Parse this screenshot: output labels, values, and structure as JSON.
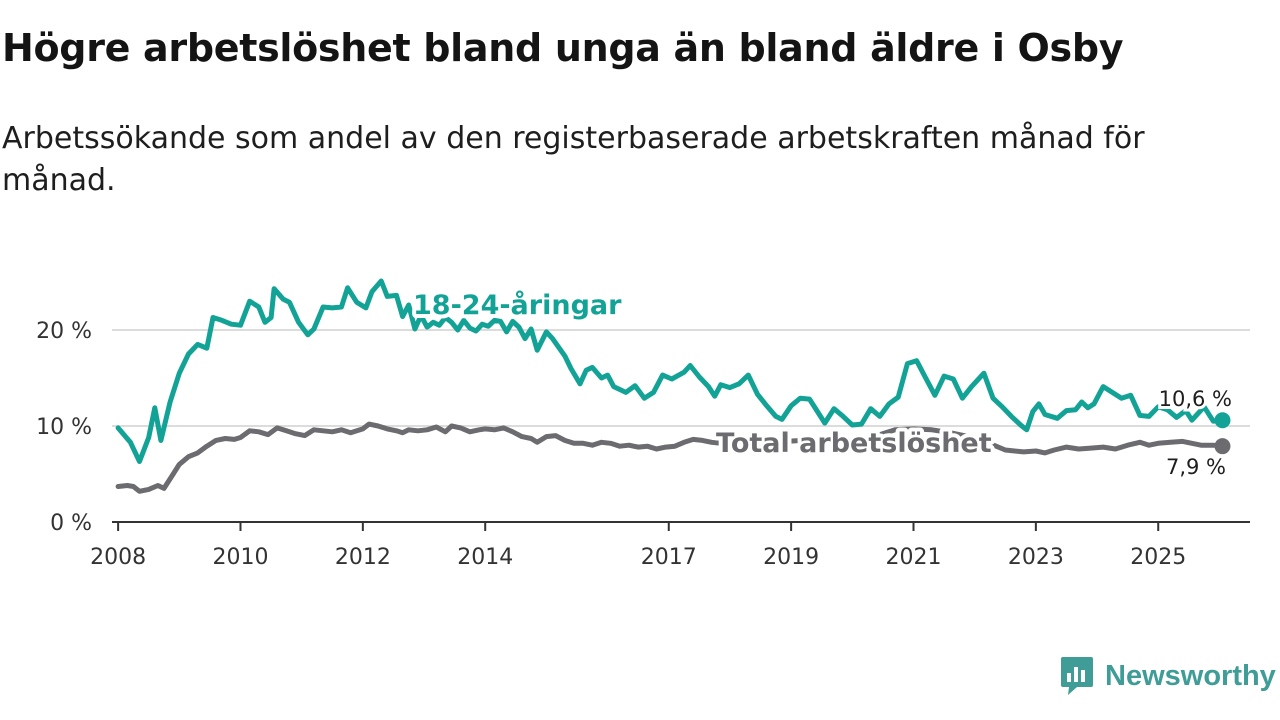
{
  "title": "Högre arbetslöshet bland unga än bland äldre i Osby",
  "subtitle": "Arbetssökande som andel av den registerbaserade arbetskraften månad för månad.",
  "brand": {
    "name": "Newsworthy",
    "icon": "newsworthy-logo-icon"
  },
  "colors": {
    "youth": "#13a396",
    "total": "#6b6b70",
    "grid": "#dcdcdc",
    "axis": "#333333",
    "brand": "#3f9c96"
  },
  "chart_data": {
    "type": "line",
    "x_unit": "year (decimal)",
    "y_unit": "%",
    "ylim": [
      0,
      25
    ],
    "xlim": [
      2007.9,
      2026.5
    ],
    "y_ticks": [
      0,
      10,
      20
    ],
    "y_tick_labels": [
      "0 %",
      "10 %",
      "20 %"
    ],
    "x_ticks": [
      2008,
      2010,
      2012,
      2014,
      2017,
      2019,
      2021,
      2023,
      2025
    ],
    "x_tick_labels": [
      "2008",
      "2010",
      "2012",
      "2014",
      "2017",
      "2019",
      "2021",
      "2023",
      "2025"
    ],
    "grid": true,
    "series": [
      {
        "name": "18-24-åringar",
        "label": "18-24-åringar",
        "color": "#13a396",
        "end_label": "10,6 %",
        "end_value": 10.6,
        "points": [
          [
            2008.0,
            9.8
          ],
          [
            2008.2,
            8.3
          ],
          [
            2008.35,
            6.3
          ],
          [
            2008.5,
            8.8
          ],
          [
            2008.6,
            11.9
          ],
          [
            2008.7,
            8.5
          ],
          [
            2008.85,
            12.5
          ],
          [
            2009.0,
            15.5
          ],
          [
            2009.15,
            17.5
          ],
          [
            2009.3,
            18.5
          ],
          [
            2009.45,
            18.1
          ],
          [
            2009.55,
            21.3
          ],
          [
            2009.7,
            21.0
          ],
          [
            2009.85,
            20.6
          ],
          [
            2010.0,
            20.5
          ],
          [
            2010.15,
            23.0
          ],
          [
            2010.3,
            22.4
          ],
          [
            2010.4,
            20.8
          ],
          [
            2010.5,
            21.3
          ],
          [
            2010.55,
            24.3
          ],
          [
            2010.7,
            23.2
          ],
          [
            2010.8,
            22.9
          ],
          [
            2010.95,
            20.8
          ],
          [
            2011.1,
            19.5
          ],
          [
            2011.2,
            20.1
          ],
          [
            2011.35,
            22.4
          ],
          [
            2011.5,
            22.3
          ],
          [
            2011.65,
            22.4
          ],
          [
            2011.75,
            24.4
          ],
          [
            2011.9,
            22.9
          ],
          [
            2012.05,
            22.3
          ],
          [
            2012.15,
            24.0
          ],
          [
            2012.3,
            25.1
          ],
          [
            2012.4,
            23.5
          ],
          [
            2012.55,
            23.6
          ],
          [
            2012.65,
            21.4
          ],
          [
            2012.75,
            22.6
          ],
          [
            2012.85,
            20.1
          ],
          [
            2012.95,
            21.5
          ],
          [
            2013.05,
            20.3
          ],
          [
            2013.15,
            20.8
          ],
          [
            2013.25,
            20.5
          ],
          [
            2013.35,
            21.3
          ],
          [
            2013.45,
            20.8
          ],
          [
            2013.55,
            20.0
          ],
          [
            2013.65,
            21.0
          ],
          [
            2013.75,
            20.2
          ],
          [
            2013.85,
            19.9
          ],
          [
            2013.95,
            20.6
          ],
          [
            2014.05,
            20.4
          ],
          [
            2014.15,
            21.0
          ],
          [
            2014.25,
            20.9
          ],
          [
            2014.35,
            19.8
          ],
          [
            2014.45,
            20.9
          ],
          [
            2014.55,
            20.3
          ],
          [
            2014.65,
            19.1
          ],
          [
            2014.75,
            20.1
          ],
          [
            2014.85,
            17.9
          ],
          [
            2015.0,
            19.8
          ],
          [
            2015.1,
            19.1
          ],
          [
            2015.3,
            17.3
          ],
          [
            2015.4,
            16.0
          ],
          [
            2015.55,
            14.4
          ],
          [
            2015.65,
            15.8
          ],
          [
            2015.75,
            16.1
          ],
          [
            2015.9,
            15.0
          ],
          [
            2016.0,
            15.3
          ],
          [
            2016.1,
            14.1
          ],
          [
            2016.3,
            13.5
          ],
          [
            2016.45,
            14.2
          ],
          [
            2016.6,
            12.9
          ],
          [
            2016.75,
            13.5
          ],
          [
            2016.9,
            15.3
          ],
          [
            2017.05,
            14.9
          ],
          [
            2017.25,
            15.6
          ],
          [
            2017.35,
            16.3
          ],
          [
            2017.5,
            15.1
          ],
          [
            2017.65,
            14.1
          ],
          [
            2017.75,
            13.1
          ],
          [
            2017.85,
            14.3
          ],
          [
            2018.0,
            14.0
          ],
          [
            2018.15,
            14.4
          ],
          [
            2018.3,
            15.3
          ],
          [
            2018.45,
            13.3
          ],
          [
            2018.6,
            12.1
          ],
          [
            2018.75,
            11.0
          ],
          [
            2018.85,
            10.7
          ],
          [
            2019.0,
            12.1
          ],
          [
            2019.15,
            12.9
          ],
          [
            2019.3,
            12.8
          ],
          [
            2019.45,
            11.3
          ],
          [
            2019.55,
            10.3
          ],
          [
            2019.7,
            11.8
          ],
          [
            2019.85,
            11.0
          ],
          [
            2020.0,
            10.1
          ],
          [
            2020.15,
            10.2
          ],
          [
            2020.3,
            11.8
          ],
          [
            2020.45,
            11.0
          ],
          [
            2020.6,
            12.3
          ],
          [
            2020.75,
            13.0
          ],
          [
            2020.9,
            16.5
          ],
          [
            2021.05,
            16.8
          ],
          [
            2021.2,
            15.0
          ],
          [
            2021.35,
            13.2
          ],
          [
            2021.5,
            15.2
          ],
          [
            2021.65,
            14.9
          ],
          [
            2021.8,
            12.9
          ],
          [
            2021.95,
            14.1
          ],
          [
            2022.15,
            15.5
          ],
          [
            2022.3,
            12.9
          ],
          [
            2022.45,
            12.0
          ],
          [
            2022.6,
            11.0
          ],
          [
            2022.75,
            10.1
          ],
          [
            2022.85,
            9.6
          ],
          [
            2022.95,
            11.5
          ],
          [
            2023.05,
            12.3
          ],
          [
            2023.15,
            11.2
          ],
          [
            2023.35,
            10.8
          ],
          [
            2023.5,
            11.6
          ],
          [
            2023.65,
            11.7
          ],
          [
            2023.75,
            12.5
          ],
          [
            2023.85,
            11.9
          ],
          [
            2023.95,
            12.3
          ],
          [
            2024.1,
            14.1
          ],
          [
            2024.25,
            13.5
          ],
          [
            2024.4,
            12.9
          ],
          [
            2024.55,
            13.2
          ],
          [
            2024.7,
            11.1
          ],
          [
            2024.85,
            11.0
          ],
          [
            2025.0,
            12.0
          ],
          [
            2025.15,
            11.7
          ],
          [
            2025.3,
            10.9
          ],
          [
            2025.45,
            11.6
          ],
          [
            2025.55,
            10.6
          ],
          [
            2025.75,
            12.0
          ],
          [
            2025.9,
            10.5
          ],
          [
            2026.05,
            10.6
          ]
        ]
      },
      {
        "name": "Total arbetslöshet",
        "label": "Total arbetslöshet",
        "color": "#6b6b70",
        "end_label": "7,9 %",
        "end_value": 7.9,
        "points": [
          [
            2008.0,
            3.7
          ],
          [
            2008.15,
            3.8
          ],
          [
            2008.25,
            3.7
          ],
          [
            2008.35,
            3.2
          ],
          [
            2008.5,
            3.4
          ],
          [
            2008.65,
            3.8
          ],
          [
            2008.75,
            3.5
          ],
          [
            2008.9,
            5.0
          ],
          [
            2009.0,
            6.0
          ],
          [
            2009.15,
            6.8
          ],
          [
            2009.3,
            7.2
          ],
          [
            2009.45,
            7.9
          ],
          [
            2009.6,
            8.5
          ],
          [
            2009.75,
            8.7
          ],
          [
            2009.9,
            8.6
          ],
          [
            2010.0,
            8.8
          ],
          [
            2010.15,
            9.5
          ],
          [
            2010.3,
            9.4
          ],
          [
            2010.45,
            9.1
          ],
          [
            2010.6,
            9.8
          ],
          [
            2010.75,
            9.5
          ],
          [
            2010.9,
            9.2
          ],
          [
            2011.05,
            9.0
          ],
          [
            2011.2,
            9.6
          ],
          [
            2011.35,
            9.5
          ],
          [
            2011.5,
            9.4
          ],
          [
            2011.65,
            9.6
          ],
          [
            2011.8,
            9.3
          ],
          [
            2012.0,
            9.7
          ],
          [
            2012.1,
            10.2
          ],
          [
            2012.25,
            10.0
          ],
          [
            2012.4,
            9.7
          ],
          [
            2012.55,
            9.5
          ],
          [
            2012.65,
            9.3
          ],
          [
            2012.75,
            9.6
          ],
          [
            2012.9,
            9.5
          ],
          [
            2013.05,
            9.6
          ],
          [
            2013.2,
            9.9
          ],
          [
            2013.35,
            9.4
          ],
          [
            2013.45,
            10.0
          ],
          [
            2013.6,
            9.8
          ],
          [
            2013.75,
            9.4
          ],
          [
            2013.9,
            9.6
          ],
          [
            2014.0,
            9.7
          ],
          [
            2014.15,
            9.6
          ],
          [
            2014.3,
            9.8
          ],
          [
            2014.45,
            9.4
          ],
          [
            2014.6,
            8.9
          ],
          [
            2014.75,
            8.7
          ],
          [
            2014.85,
            8.3
          ],
          [
            2015.0,
            8.9
          ],
          [
            2015.15,
            9.0
          ],
          [
            2015.3,
            8.5
          ],
          [
            2015.45,
            8.2
          ],
          [
            2015.6,
            8.2
          ],
          [
            2015.75,
            8.0
          ],
          [
            2015.9,
            8.3
          ],
          [
            2016.05,
            8.2
          ],
          [
            2016.2,
            7.9
          ],
          [
            2016.35,
            8.0
          ],
          [
            2016.5,
            7.8
          ],
          [
            2016.65,
            7.9
          ],
          [
            2016.8,
            7.6
          ],
          [
            2016.95,
            7.8
          ],
          [
            2017.1,
            7.9
          ],
          [
            2017.25,
            8.3
          ],
          [
            2017.4,
            8.6
          ],
          [
            2017.55,
            8.5
          ],
          [
            2017.7,
            8.3
          ],
          [
            2017.85,
            8.2
          ],
          [
            2018.0,
            8.4
          ],
          [
            2018.3,
            8.6
          ],
          [
            2018.6,
            8.5
          ],
          [
            2018.9,
            8.4
          ],
          [
            2019.2,
            8.5
          ],
          [
            2019.5,
            8.3
          ],
          [
            2019.8,
            8.4
          ],
          [
            2020.1,
            8.4
          ],
          [
            2020.4,
            9.0
          ],
          [
            2020.7,
            9.6
          ],
          [
            2021.0,
            9.7
          ],
          [
            2021.3,
            9.6
          ],
          [
            2021.6,
            9.3
          ],
          [
            2021.9,
            8.9
          ],
          [
            2022.2,
            8.3
          ],
          [
            2022.5,
            7.5
          ],
          [
            2022.8,
            7.3
          ],
          [
            2023.0,
            7.4
          ],
          [
            2023.15,
            7.2
          ],
          [
            2023.3,
            7.5
          ],
          [
            2023.5,
            7.8
          ],
          [
            2023.7,
            7.6
          ],
          [
            2023.9,
            7.7
          ],
          [
            2024.1,
            7.8
          ],
          [
            2024.3,
            7.6
          ],
          [
            2024.5,
            8.0
          ],
          [
            2024.7,
            8.3
          ],
          [
            2024.85,
            8.0
          ],
          [
            2025.0,
            8.2
          ],
          [
            2025.2,
            8.3
          ],
          [
            2025.4,
            8.4
          ],
          [
            2025.55,
            8.2
          ],
          [
            2025.7,
            8.0
          ],
          [
            2025.9,
            8.0
          ],
          [
            2026.05,
            7.9
          ]
        ]
      }
    ]
  }
}
